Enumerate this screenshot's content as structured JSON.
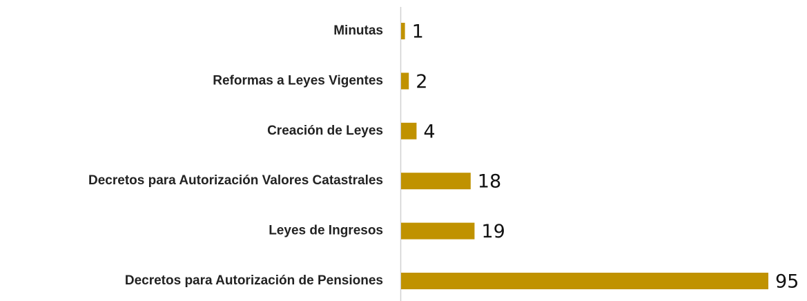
{
  "chart_data": {
    "type": "barh",
    "categories": [
      "Minutas",
      "Reformas a Leyes Vigentes",
      "Creación de Leyes",
      "Decretos para Autorización Valores Catastrales",
      "Leyes de Ingresos",
      "Decretos para Autorización de Pensiones"
    ],
    "values": [
      1,
      2,
      4,
      18,
      19,
      95
    ],
    "color": "#c09200"
  }
}
